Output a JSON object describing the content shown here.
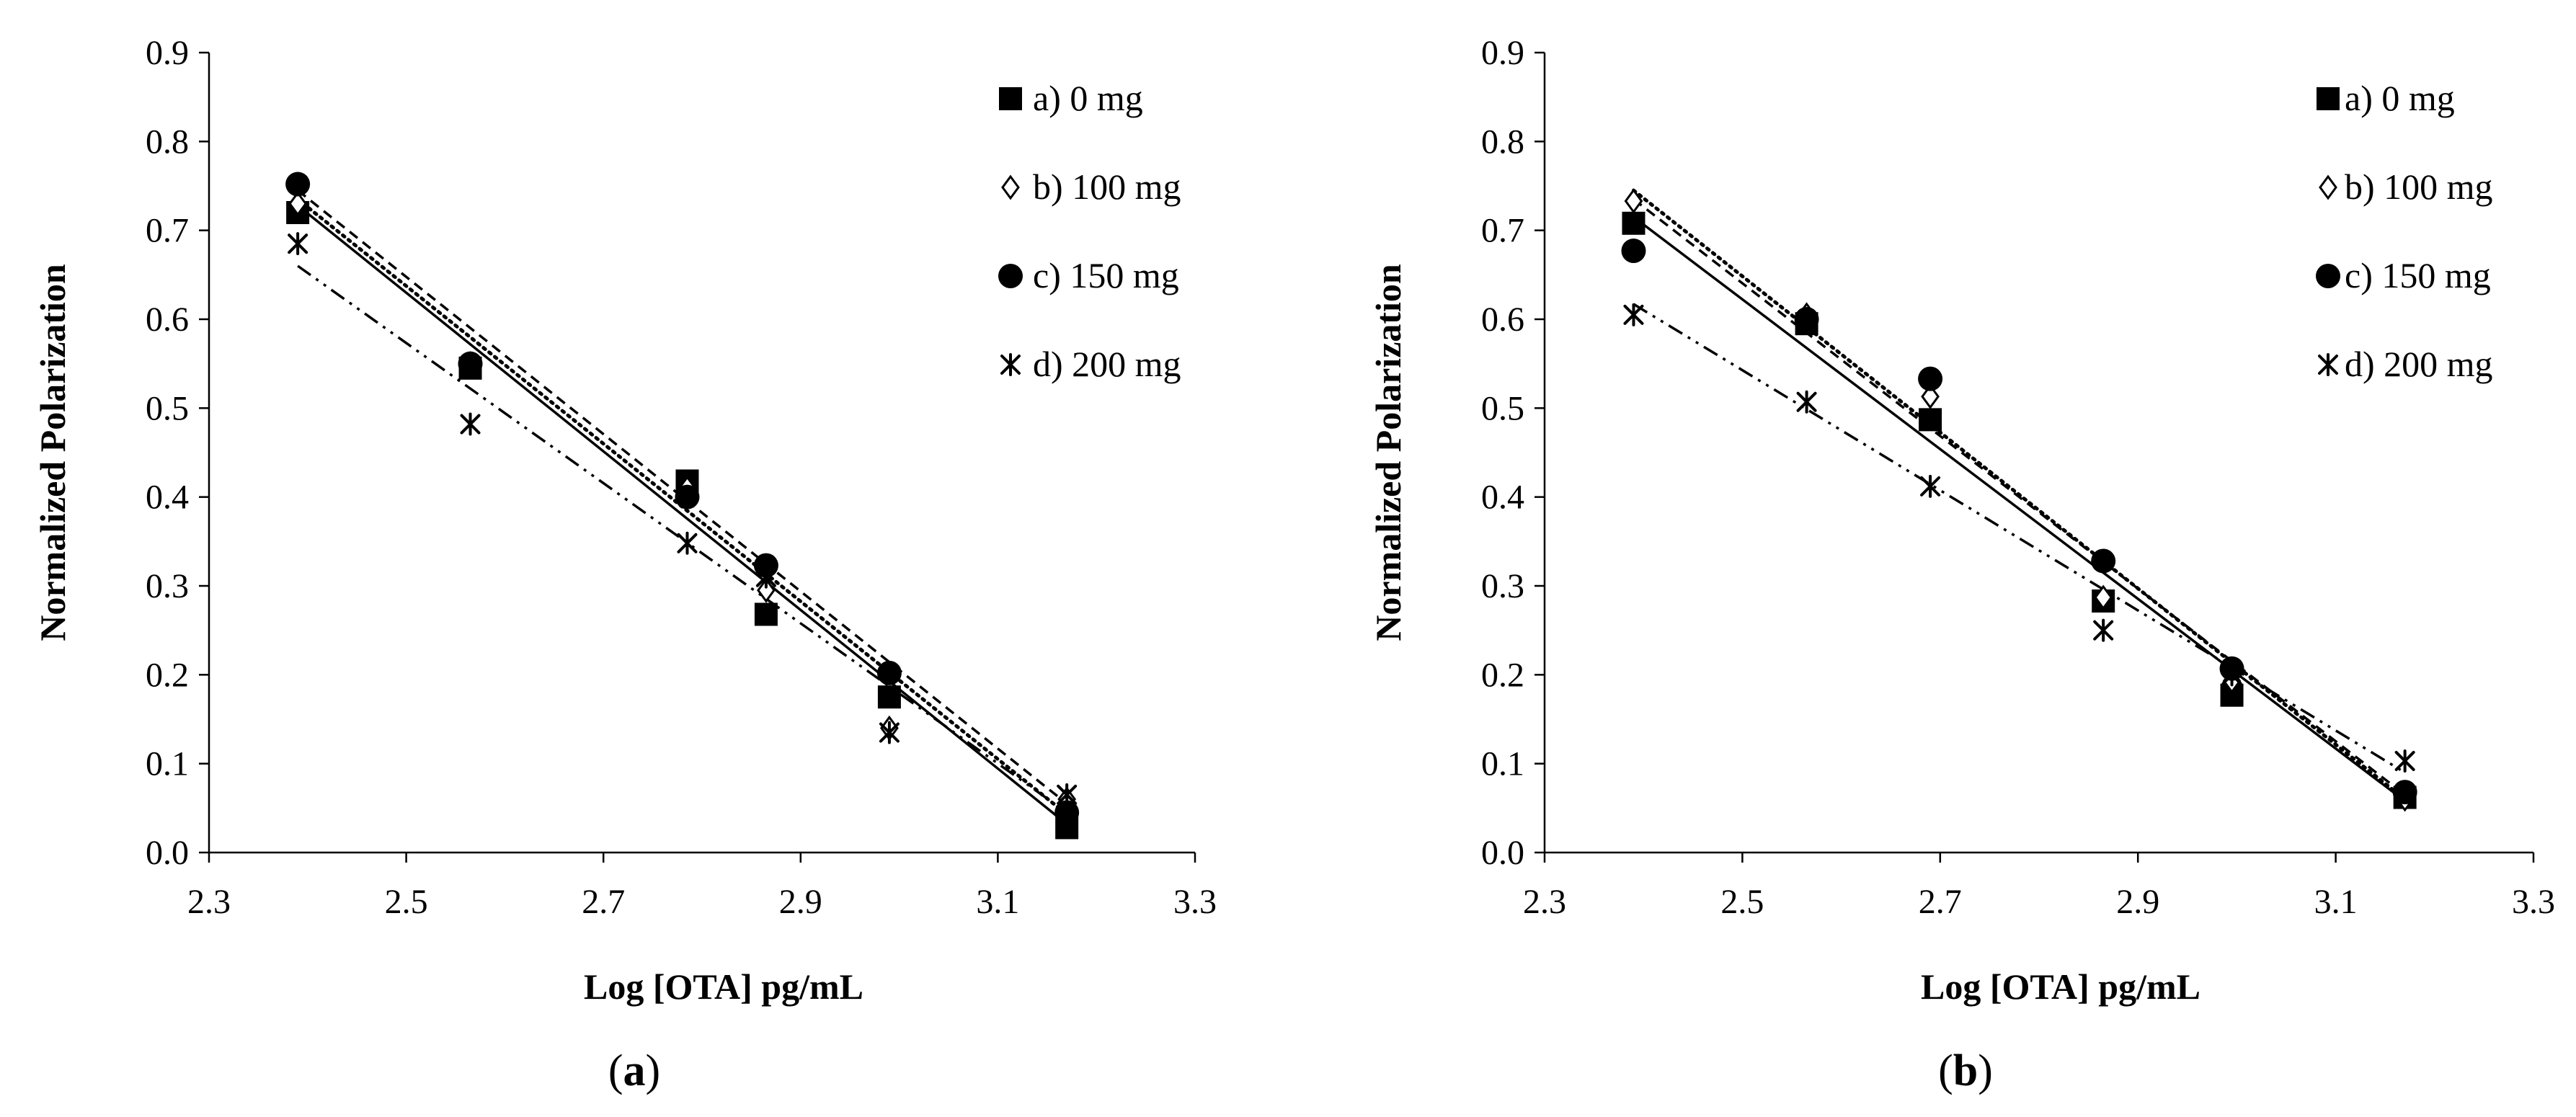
{
  "chart_data": [
    {
      "type": "scatter",
      "panel_label": "a",
      "xlabel": "Log [OTA]  pg/mL",
      "ylabel": "Normalized Polarization",
      "xlim": [
        2.3,
        3.3
      ],
      "ylim": [
        0.0,
        0.9
      ],
      "xticks": [
        "2.3",
        "2.5",
        "2.7",
        "2.9",
        "3.1",
        "3.3"
      ],
      "yticks": [
        "0.0",
        "0.1",
        "0.2",
        "0.3",
        "0.4",
        "0.5",
        "0.6",
        "0.7",
        "0.8",
        "0.9"
      ],
      "grid": false,
      "legend_position": "top-right",
      "x": [
        2.39,
        2.565,
        2.785,
        2.865,
        2.99,
        3.17
      ],
      "series": [
        {
          "name": "a) 0 mg",
          "marker": "square",
          "line": "solid",
          "values": [
            0.72,
            0.545,
            0.418,
            0.268,
            0.175,
            0.028
          ],
          "fit": [
            0.728,
            0.032
          ]
        },
        {
          "name": "b) 100 mg",
          "marker": "diamond",
          "line": "dotted",
          "values": [
            0.73,
            0.55,
            0.41,
            0.295,
            0.14,
            0.06
          ],
          "fit": [
            0.735,
            0.043
          ]
        },
        {
          "name": "c) 150 mg",
          "marker": "circle",
          "line": "dashed",
          "values": [
            0.752,
            0.55,
            0.4,
            0.323,
            0.202,
            0.045
          ],
          "fit": [
            0.745,
            0.055
          ]
        },
        {
          "name": "d) 200 mg",
          "marker": "star",
          "line": "dash-dot-dot",
          "values": [
            0.685,
            0.482,
            0.348,
            0.31,
            0.135,
            0.065
          ],
          "fit": [
            0.66,
            0.045
          ]
        }
      ]
    },
    {
      "type": "scatter",
      "panel_label": "b",
      "xlabel": "Log [OTA]  pg/mL",
      "ylabel": "Normalized Polarization",
      "xlim": [
        2.3,
        3.3
      ],
      "ylim": [
        0.0,
        0.9
      ],
      "xticks": [
        "2.3",
        "2.5",
        "2.7",
        "2.9",
        "3.1",
        "3.3"
      ],
      "yticks": [
        "0.0",
        "0.1",
        "0.2",
        "0.3",
        "0.4",
        "0.5",
        "0.6",
        "0.7",
        "0.8",
        "0.9"
      ],
      "grid": false,
      "legend_position": "top-right",
      "x": [
        2.39,
        2.565,
        2.69,
        2.865,
        2.995,
        3.17
      ],
      "series": [
        {
          "name": "a) 0 mg",
          "marker": "square",
          "line": "solid",
          "values": [
            0.708,
            0.595,
            0.487,
            0.283,
            0.177,
            0.062
          ],
          "fit": [
            0.715,
            0.058
          ]
        },
        {
          "name": "b) 100 mg",
          "marker": "diamond",
          "line": "dotted",
          "values": [
            0.733,
            0.605,
            0.513,
            0.287,
            0.193,
            0.06
          ],
          "fit": [
            0.745,
            0.06
          ]
        },
        {
          "name": "c) 150 mg",
          "marker": "circle",
          "line": "dashed",
          "values": [
            0.677,
            0.6,
            0.533,
            0.328,
            0.207,
            0.068
          ],
          "fit": [
            0.735,
            0.065
          ]
        },
        {
          "name": "d) 200 mg",
          "marker": "star",
          "line": "dash-dot-dot",
          "values": [
            0.605,
            0.507,
            0.412,
            0.25,
            0.2,
            0.103
          ],
          "fit": [
            0.617,
            0.09
          ]
        }
      ]
    }
  ]
}
